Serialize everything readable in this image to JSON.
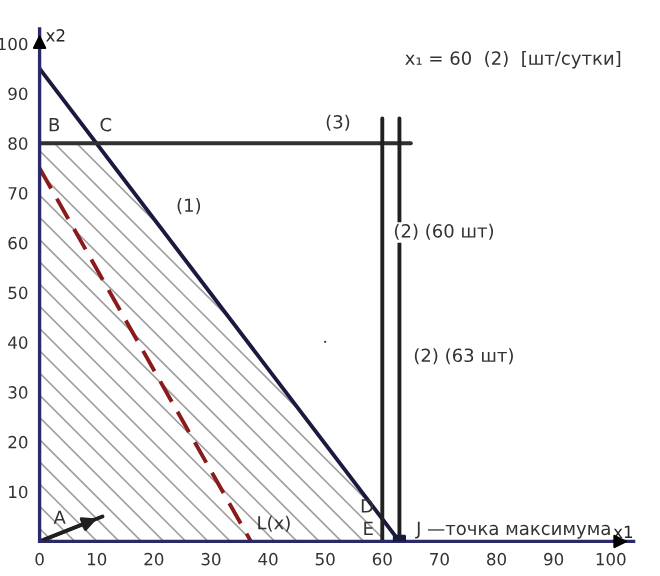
{
  "chart_data": {
    "type": "line",
    "xlabel": "x1",
    "ylabel": "x2",
    "xlim": [
      0,
      104
    ],
    "ylim": [
      0,
      103
    ],
    "xticks": [
      0,
      10,
      20,
      30,
      40,
      50,
      60,
      70,
      80,
      90,
      100
    ],
    "yticks": [
      10,
      20,
      30,
      40,
      50,
      60,
      70,
      80,
      90,
      100
    ],
    "grid": false,
    "marker": "none",
    "line_style": "solid",
    "series": [
      {
        "type": "area",
        "color": "#a0a0a0",
        "x": [
          0,
          10,
          60,
          60
        ],
        "values": [
          80,
          80,
          4.5,
          0
        ]
      },
      {
        "color": "#1a1a40",
        "x": [
          0,
          63
        ],
        "values": [
          95,
          0
        ]
      },
      {
        "color": "#303030",
        "x": [
          0,
          65
        ],
        "values": [
          80,
          80
        ]
      },
      {
        "color": "#202020",
        "x": [
          60,
          60
        ],
        "values": [
          0,
          85
        ]
      },
      {
        "color": "#202020",
        "x": [
          63,
          63
        ],
        "values": [
          0,
          85
        ]
      },
      {
        "color": "#8b1a1a",
        "line_style": "dashed",
        "x": [
          0,
          37
        ],
        "values": [
          75,
          0
        ]
      },
      {
        "color": "#202020",
        "x": [
          0,
          11
        ],
        "values": [
          0,
          5
        ]
      },
      {
        "type": "scatter",
        "color": "#1a1a40",
        "marker": "square",
        "x": [
          63
        ],
        "values": [
          0
        ]
      }
    ],
    "annotations": [
      {
        "text": "A",
        "x": 0,
        "y": 0
      },
      {
        "text": "B",
        "x": 0,
        "y": 80
      },
      {
        "text": "C",
        "x": 10,
        "y": 80
      },
      {
        "text": "D",
        "x": 60,
        "y": 4.5
      },
      {
        "text": "E",
        "x": 60,
        "y": 0
      },
      {
        "text": "J —точка максимума",
        "x": 63,
        "y": 0
      },
      {
        "text": "L(x)",
        "x": 37,
        "y": 0
      },
      {
        "text": "(1)",
        "x": 20,
        "y": 63.8
      },
      {
        "text": "(3)",
        "x": 50,
        "y": 80
      },
      {
        "text": "(2) (60 шт)",
        "x": 60,
        "y": 62
      },
      {
        "text": "(2) (63 шт)",
        "x": 63,
        "y": 37
      },
      "x₁ = 60  (2)  [шт/сутки]"
    ]
  }
}
